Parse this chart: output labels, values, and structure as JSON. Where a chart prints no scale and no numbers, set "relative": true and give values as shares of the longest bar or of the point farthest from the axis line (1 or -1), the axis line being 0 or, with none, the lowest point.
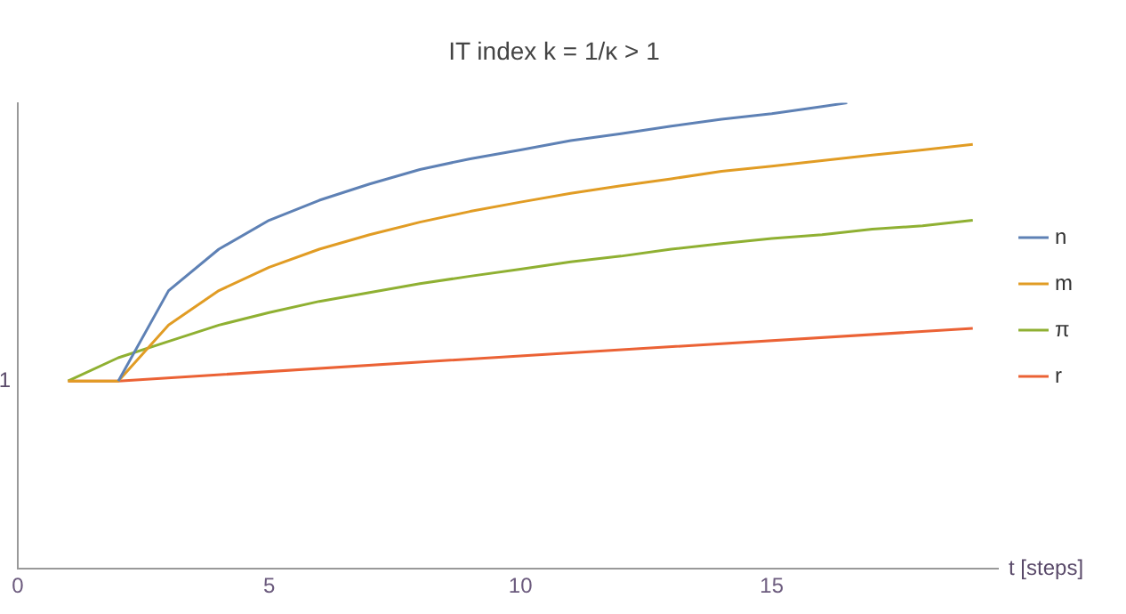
{
  "chart_data": {
    "type": "line",
    "title": "IT index k = 1/κ > 1",
    "xlabel": "t [steps]",
    "relative": true,
    "xlim": [
      0,
      19.5
    ],
    "xticks": [
      0,
      5,
      10,
      15
    ],
    "legend": "right",
    "marker": "none",
    "grid": false,
    "annotations": [
      "1"
    ],
    "series": [
      {
        "name": "n",
        "color": "#5e81b5",
        "x": [
          2,
          3,
          4,
          5,
          6,
          7,
          8,
          9,
          10,
          11,
          12,
          13,
          14,
          15,
          16,
          16.5
        ],
        "values": [
          0.403,
          0.597,
          0.686,
          0.748,
          0.791,
          0.826,
          0.857,
          0.88,
          0.899,
          0.919,
          0.934,
          0.95,
          0.965,
          0.977,
          0.992,
          1
        ]
      },
      {
        "name": "m",
        "color": "#e19c24",
        "x": [
          1,
          2,
          3,
          4,
          5,
          6,
          7,
          8,
          9,
          10,
          11,
          12,
          13,
          14,
          15,
          16,
          17,
          18,
          19
        ],
        "values": [
          0.403,
          0.403,
          0.523,
          0.597,
          0.647,
          0.686,
          0.717,
          0.744,
          0.767,
          0.787,
          0.806,
          0.822,
          0.837,
          0.853,
          0.864,
          0.876,
          0.888,
          0.899,
          0.911
        ]
      },
      {
        "name": "π",
        "color": "#8fb032",
        "x": [
          1,
          2,
          3,
          4,
          5,
          6,
          7,
          8,
          9,
          10,
          11,
          12,
          13,
          14,
          15,
          16,
          17,
          18,
          19
        ],
        "values": [
          0.403,
          0.453,
          0.488,
          0.523,
          0.55,
          0.574,
          0.593,
          0.612,
          0.628,
          0.643,
          0.659,
          0.671,
          0.686,
          0.698,
          0.709,
          0.717,
          0.729,
          0.736,
          0.748
        ]
      },
      {
        "name": "r",
        "color": "#eb6235",
        "x": [
          1,
          2,
          10,
          19
        ],
        "values": [
          0.403,
          0.403,
          0.457,
          0.516
        ]
      }
    ]
  }
}
